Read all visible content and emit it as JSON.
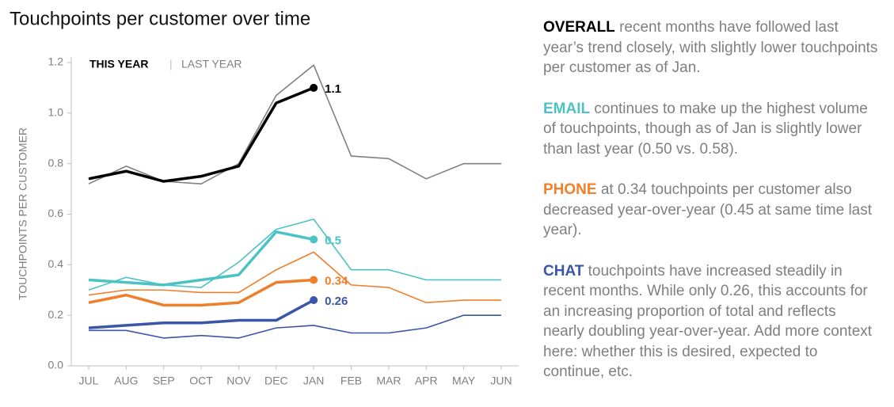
{
  "chart_data": {
    "type": "line",
    "title": "Touchpoints per customer over time",
    "y_label": "TOUCHPOINTS PER CUSTOMER",
    "categories": [
      "JUL",
      "AUG",
      "SEP",
      "OCT",
      "NOV",
      "DEC",
      "JAN",
      "FEB",
      "MAR",
      "APR",
      "MAY",
      "JUN"
    ],
    "ylim": [
      0,
      1.2
    ],
    "yticks": [
      {
        "value": 0,
        "label": "0.0"
      },
      0.2,
      0.4,
      0.6,
      0.8,
      {
        "value": 1,
        "label": "1.0"
      },
      1.2
    ],
    "grid": false,
    "series_groups": [
      {
        "name": "THIS YEAR",
        "series": [
          {
            "color": "#000000",
            "values": [
              0.74,
              0.77,
              0.73,
              0.75,
              0.79,
              1.04,
              1.1,
              null,
              null,
              null,
              null,
              null
            ],
            "value_labels": [
              null,
              null,
              null,
              null,
              null,
              null,
              "1.1",
              null,
              null,
              null,
              null,
              null
            ]
          },
          {
            "color": "#4cc3c3",
            "values": [
              0.34,
              0.33,
              0.32,
              0.34,
              0.36,
              0.53,
              0.5,
              null,
              null,
              null,
              null,
              null
            ],
            "value_labels": [
              null,
              null,
              null,
              null,
              null,
              null,
              "0.5",
              null,
              null,
              null,
              null,
              null
            ]
          },
          {
            "color": "#f07f2c",
            "values": [
              0.25,
              0.28,
              0.24,
              0.24,
              0.25,
              0.33,
              0.34,
              null,
              null,
              null,
              null,
              null
            ],
            "value_labels": [
              null,
              null,
              null,
              null,
              null,
              null,
              "0.34",
              null,
              null,
              null,
              null,
              null
            ]
          },
          {
            "color": "#3b56a6",
            "values": [
              0.15,
              0.16,
              0.17,
              0.17,
              0.18,
              0.18,
              0.26,
              null,
              null,
              null,
              null,
              null
            ],
            "value_labels": [
              null,
              null,
              null,
              null,
              null,
              null,
              "0.26",
              null,
              null,
              null,
              null,
              null
            ]
          }
        ]
      },
      {
        "name": "LAST YEAR",
        "series": [
          {
            "color": "#808080",
            "values": [
              0.72,
              0.79,
              0.73,
              0.72,
              0.8,
              1.07,
              1.19,
              0.83,
              0.82,
              0.74,
              0.8,
              0.8
            ]
          },
          {
            "color": "#4cc3c3",
            "values": [
              0.3,
              0.35,
              0.32,
              0.31,
              0.41,
              0.54,
              0.58,
              0.38,
              0.38,
              0.34,
              0.34,
              0.34
            ]
          },
          {
            "color": "#f07f2c",
            "values": [
              0.28,
              0.3,
              0.3,
              0.29,
              0.29,
              0.38,
              0.45,
              0.32,
              0.31,
              0.25,
              0.26,
              0.26
            ]
          },
          {
            "color": "#3b56a6",
            "values": [
              0.14,
              0.14,
              0.11,
              0.12,
              0.11,
              0.15,
              0.16,
              0.13,
              0.13,
              0.15,
              0.2,
              0.2
            ]
          }
        ]
      }
    ],
    "annotations": [
      {
        "heading": "OVERALL",
        "color": "#000000",
        "text": "recent months have followed last year’s trend closely, with slightly lower touchpoints per customer as of Jan."
      },
      {
        "heading": "EMAIL",
        "color": "#4cc3c3",
        "text": "continues to make up the highest volume of touchpoints, though as of Jan is slightly lower than last year (0.50 vs. 0.58)."
      },
      {
        "heading": "PHONE",
        "color": "#f07f2c",
        "text": "at 0.34 touchpoints per customer also decreased year-over-year (0.45 at same time last year)."
      },
      {
        "heading": "CHAT",
        "color": "#3b56a6",
        "text": "touchpoints have increased steadily in recent months. While only 0.26, this accounts for an increasing proportion of total and reflects nearly doubling year-over-year. Add more context here: whether this is desired, expected to continue, etc."
      }
    ]
  }
}
